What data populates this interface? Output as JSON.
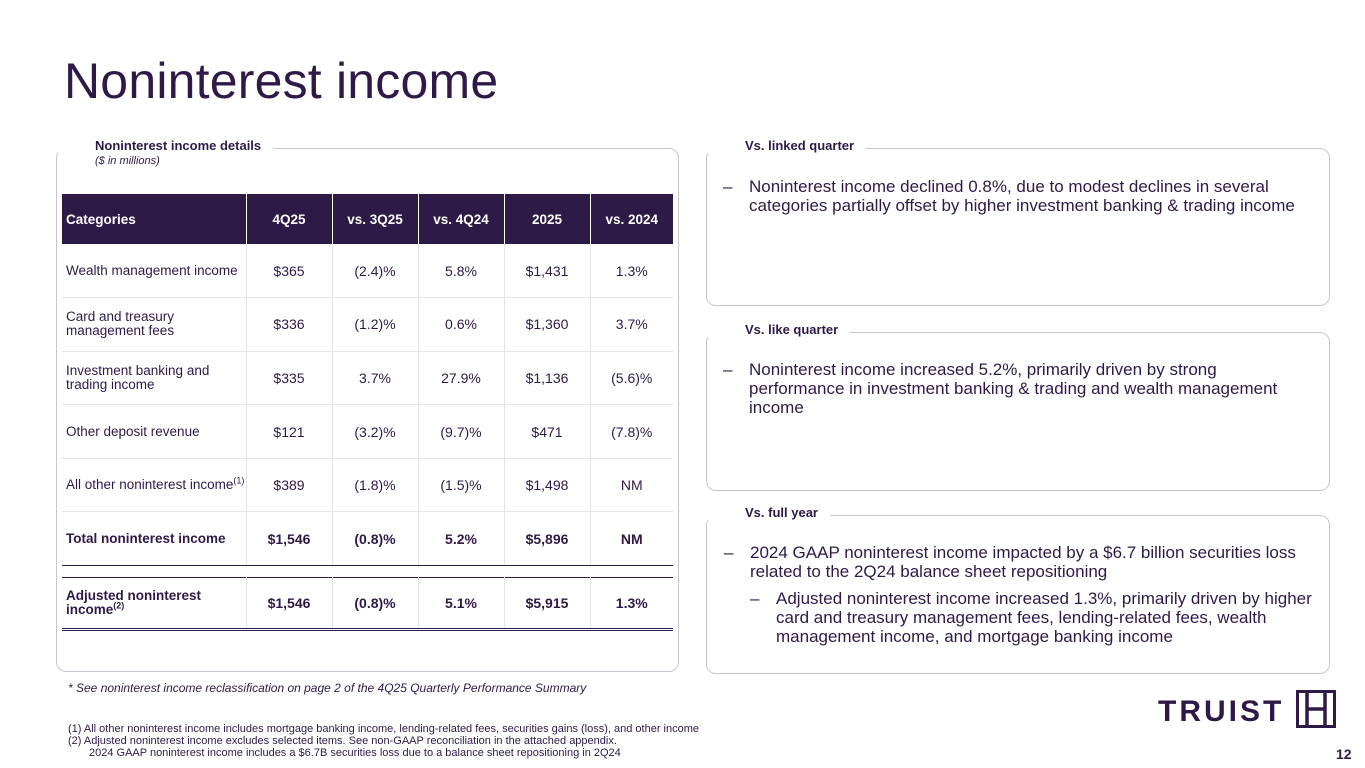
{
  "title": "Noninterest income",
  "left_panel": {
    "label": "Noninterest income details",
    "sublabel": "($ in millions)",
    "headers": [
      "Categories",
      "4Q25",
      "vs. 3Q25",
      "vs. 4Q24",
      "2025",
      "vs. 2024"
    ],
    "rows": [
      {
        "category": "Wealth management income",
        "q425": "$365",
        "vs3q25": "(2.4)%",
        "vs4q24": "5.8%",
        "y2025": "$1,431",
        "vs2024": "1.3%"
      },
      {
        "category": "Card and treasury management fees",
        "q425": "$336",
        "vs3q25": "(1.2)%",
        "vs4q24": "0.6%",
        "y2025": "$1,360",
        "vs2024": "3.7%"
      },
      {
        "category": "Investment banking and trading income",
        "q425": "$335",
        "vs3q25": "3.7%",
        "vs4q24": "27.9%",
        "y2025": "$1,136",
        "vs2024": "(5.6)%"
      },
      {
        "category": "Other deposit revenue",
        "q425": "$121",
        "vs3q25": "(3.2)%",
        "vs4q24": "(9.7)%",
        "y2025": "$471",
        "vs2024": "(7.8)%"
      },
      {
        "category": "All other noninterest income",
        "footnote": "(1)",
        "q425": "$389",
        "vs3q25": "(1.8)%",
        "vs4q24": "(1.5)%",
        "y2025": "$1,498",
        "vs2024": "NM"
      }
    ],
    "total": {
      "category": "Total noninterest income",
      "q425": "$1,546",
      "vs3q25": "(0.8)%",
      "vs4q24": "5.2%",
      "y2025": "$5,896",
      "vs2024": "NM"
    },
    "adjusted": {
      "category": "Adjusted noninterest income",
      "footnote": "(2)",
      "q425": "$1,546",
      "vs3q25": "(0.8)%",
      "vs4q24": "5.1%",
      "y2025": "$5,915",
      "vs2024": "1.3%"
    }
  },
  "linked_quarter": {
    "label": "Vs. linked quarter",
    "bullet": "Noninterest income declined 0.8%, due to modest declines in several categories partially offset by higher investment banking & trading income"
  },
  "like_quarter": {
    "label": "Vs. like quarter",
    "bullet": "Noninterest income increased 5.2%, primarily driven by strong performance in investment banking & trading and wealth management income"
  },
  "full_year": {
    "label": "Vs. full year",
    "bullet": "2024 GAAP noninterest income impacted by a $6.7 billion securities loss related to the 2Q24 balance sheet repositioning",
    "sub_bullet": "Adjusted noninterest income increased 1.3%, primarily driven by higher card and treasury management fees, lending-related fees, wealth management income, and mortgage banking income"
  },
  "dash": "–",
  "note": "* See noninterest income reclassification on page 2 of the 4Q25 Quarterly Performance Summary",
  "footnotes": {
    "fn1": "(1)  All other noninterest income includes mortgage banking income, lending-related fees, securities gains (loss), and other income",
    "fn2": "(2)  Adjusted noninterest income excludes selected items.  See non-GAAP reconciliation in the attached appendix.",
    "fn2b": "2024 GAAP noninterest income includes a $6.7B securities loss due to a balance sheet repositioning in 2Q24"
  },
  "logo_text": "TRUIST",
  "page_number": "12",
  "colors": {
    "brand": "#2e1a47",
    "border": "#c9c5cf"
  }
}
